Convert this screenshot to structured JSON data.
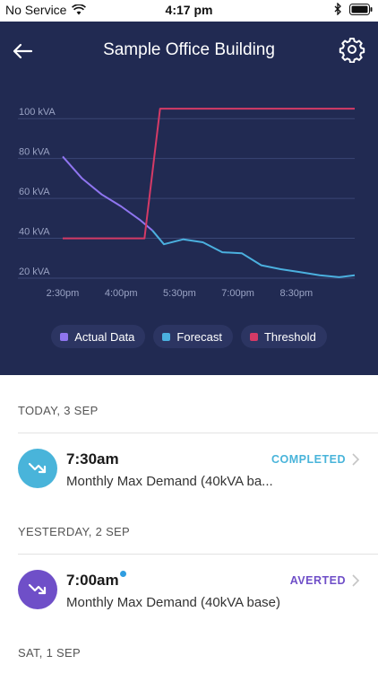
{
  "status_bar": {
    "carrier": "No Service",
    "time": "4:17 pm"
  },
  "header": {
    "title": "Sample Office Building"
  },
  "colors": {
    "header_bg": "#212a52",
    "actual": "#8f75f0",
    "forecast": "#4bb0df",
    "threshold": "#d43a66",
    "completed": "#49b4da",
    "averted": "#6f4fc8",
    "unread_dot": "#2f9de0"
  },
  "chart_data": {
    "type": "line",
    "x_ticks": [
      "2:30pm",
      "4:00pm",
      "5:30pm",
      "7:00pm",
      "8:30pm"
    ],
    "y_ticks": [
      "20 kVA",
      "40 kVA",
      "60 kVA",
      "80 kVA",
      "100 kVA"
    ],
    "ylim": [
      20,
      110
    ],
    "xlim": [
      14.5,
      22.0
    ],
    "grid": true,
    "legend_position": "bottom",
    "series": [
      {
        "name": "Actual Data",
        "points": [
          [
            14.5,
            81
          ],
          [
            15.0,
            70
          ],
          [
            15.5,
            62
          ],
          [
            16.0,
            56
          ],
          [
            16.5,
            49
          ],
          [
            16.8,
            44
          ]
        ]
      },
      {
        "name": "Forecast",
        "points": [
          [
            16.8,
            44
          ],
          [
            17.1,
            37
          ],
          [
            17.6,
            39.5
          ],
          [
            18.1,
            38
          ],
          [
            18.6,
            33
          ],
          [
            19.1,
            32.5
          ],
          [
            19.6,
            26.5
          ],
          [
            20.1,
            24.5
          ],
          [
            20.6,
            23
          ],
          [
            21.1,
            21.5
          ],
          [
            21.6,
            20.5
          ],
          [
            22.0,
            21.5
          ]
        ]
      },
      {
        "name": "Threshold",
        "points": [
          [
            14.5,
            40
          ],
          [
            16.6,
            40
          ],
          [
            17.0,
            105
          ],
          [
            22.0,
            105
          ]
        ]
      }
    ]
  },
  "legend": [
    {
      "label": "Actual Data",
      "color_key": "actual"
    },
    {
      "label": "Forecast",
      "color_key": "forecast"
    },
    {
      "label": "Threshold",
      "color_key": "threshold"
    }
  ],
  "events": {
    "today_header": "TODAY, 3 SEP",
    "yesterday_header": "YESTERDAY, 2 SEP",
    "sat_header": "SAT, 1 SEP",
    "items": [
      {
        "time": "7:30am",
        "description": "Monthly Max Demand (40kVA ba...",
        "status": "COMPLETED",
        "unread": false
      },
      {
        "time": "7:00am",
        "description": "Monthly Max Demand (40kVA base)",
        "status": "AVERTED",
        "unread": true
      }
    ]
  }
}
